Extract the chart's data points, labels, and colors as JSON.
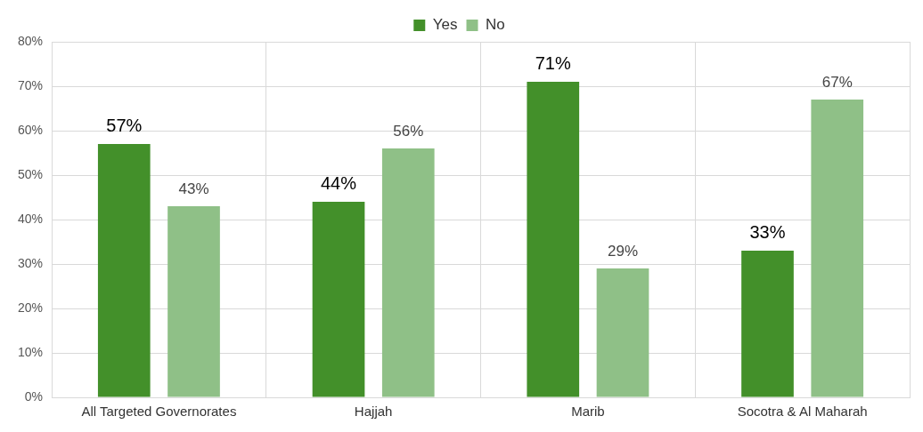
{
  "chart_data": {
    "type": "bar",
    "categories": [
      "All Targeted Governorates",
      "Hajjah",
      "Marib",
      "Socotra & Al Maharah"
    ],
    "series": [
      {
        "name": "Yes",
        "color": "#43902a",
        "values": [
          57,
          44,
          71,
          33
        ]
      },
      {
        "name": "No",
        "color": "#8fc087",
        "values": [
          43,
          56,
          29,
          67
        ]
      }
    ],
    "ylim": [
      0,
      80
    ],
    "yticks": [
      {
        "value": 0,
        "label": "0%"
      },
      {
        "value": 10,
        "label": "10%"
      },
      {
        "value": 20,
        "label": "20%"
      },
      {
        "value": 30,
        "label": "30%"
      },
      {
        "value": 40,
        "label": "40%"
      },
      {
        "value": 50,
        "label": "50%"
      },
      {
        "value": 60,
        "label": "60%"
      },
      {
        "value": 70,
        "label": "70%"
      },
      {
        "value": 80,
        "label": "80%"
      }
    ],
    "value_labels": [
      [
        "57%",
        "44%",
        "71%",
        "33%"
      ],
      [
        "43%",
        "56%",
        "29%",
        "67%"
      ]
    ],
    "grid": true,
    "legend": "top"
  }
}
